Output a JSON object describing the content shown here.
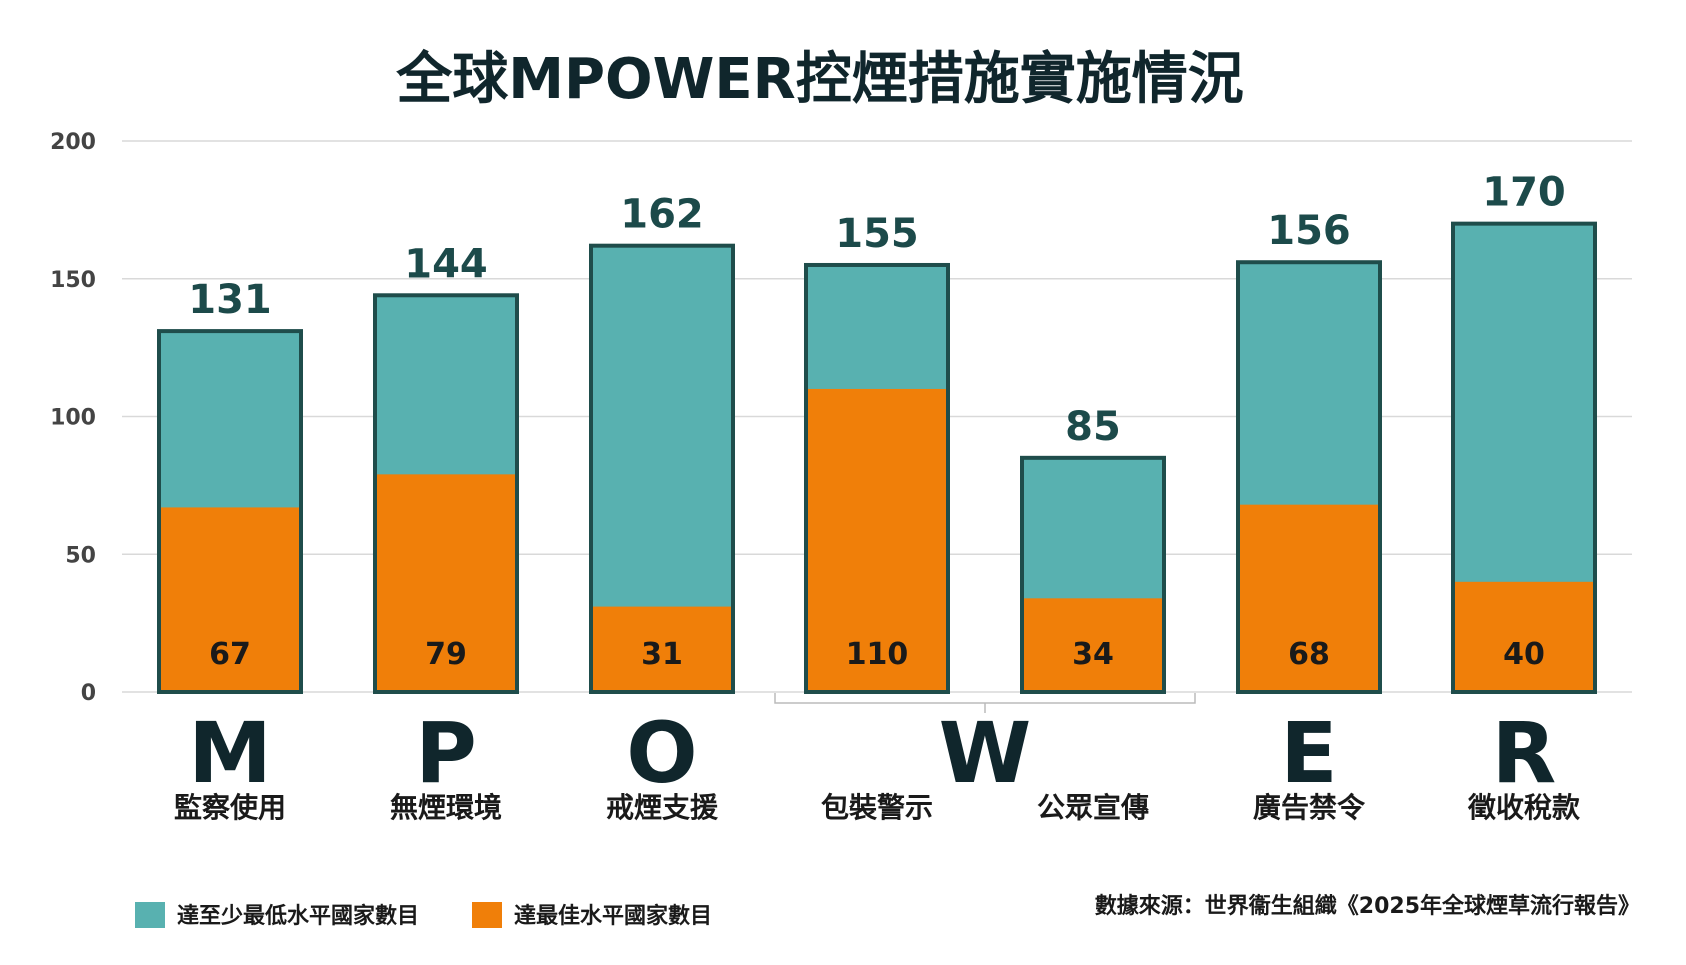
{
  "chart_data": {
    "type": "bar",
    "title": "全球MPOWER控煙措施實施情況",
    "categories": [
      "監察使用",
      "無煙環境",
      "戒煙支援",
      "包裝警示",
      "公眾宣傳",
      "廣告禁令",
      "徵收稅款"
    ],
    "series": [
      {
        "name": "達至少最低水平國家數目",
        "values": [
          131,
          144,
          162,
          155,
          85,
          156,
          170
        ]
      },
      {
        "name": "達最佳水平國家數目",
        "values": [
          67,
          79,
          31,
          110,
          34,
          68,
          40
        ]
      }
    ],
    "groups": [
      {
        "letter": "M",
        "members": [
          0
        ]
      },
      {
        "letter": "P",
        "members": [
          1
        ]
      },
      {
        "letter": "O",
        "members": [
          2
        ]
      },
      {
        "letter": "W",
        "members": [
          3,
          4
        ]
      },
      {
        "letter": "E",
        "members": [
          5
        ]
      },
      {
        "letter": "R",
        "members": [
          6
        ]
      }
    ],
    "ylim": [
      0,
      200
    ],
    "yticks": [
      0,
      50,
      100,
      150,
      200
    ],
    "grid": true,
    "legend_position": "bottom-left",
    "source": "數據來源：世界衞生組織《2025年全球煙草流行報告》",
    "colors": {
      "minimum": "#58b1b0",
      "best": "#f07f09",
      "outline": "#1f4d4b",
      "grid": "#d9d9d9",
      "title": "#10262c",
      "total_label": "#1c4a4a"
    }
  }
}
